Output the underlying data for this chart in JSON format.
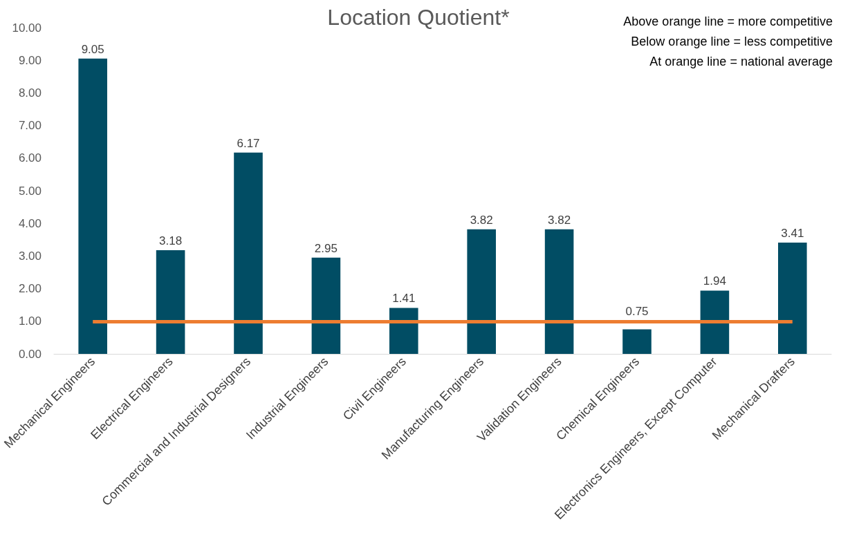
{
  "chart_data": {
    "type": "bar",
    "title": "Location Quotient*",
    "categories": [
      "Mechanical Engineers",
      "Electrical Engineers",
      "Commercial and Industrial Designers",
      "Industrial Engineers",
      "Civil Engineers",
      "Manufacturing Engineers",
      "Validation Engineers",
      "Chemical Engineers",
      "Electronics Engineers, Except Computer",
      "Mechanical Drafters"
    ],
    "values": [
      9.05,
      3.18,
      6.17,
      2.95,
      1.41,
      3.82,
      3.82,
      0.75,
      1.94,
      3.41
    ],
    "color": "#014d64",
    "ylim": [
      0,
      10
    ],
    "yticks": [
      {
        "value": 0,
        "label": "0.00"
      },
      {
        "value": 1,
        "label": "1.00"
      },
      {
        "value": 2,
        "label": "2.00"
      },
      {
        "value": 3,
        "label": "3.00"
      },
      {
        "value": 4,
        "label": "4.00"
      },
      {
        "value": 5,
        "label": "5.00"
      },
      {
        "value": 6,
        "label": "6.00"
      },
      {
        "value": 7,
        "label": "7.00"
      },
      {
        "value": 8,
        "label": "8.00"
      },
      {
        "value": 9,
        "label": "9.00"
      },
      {
        "value": 10,
        "label": "10.00"
      }
    ],
    "grid": false,
    "data_labels": true,
    "ref_lines": [
      {
        "axis": "y",
        "value": 1,
        "color": "#ed7d31"
      }
    ],
    "annotations": [
      "Above orange line = more competitive",
      "Below orange line = less competitive",
      "At orange line = national average"
    ]
  }
}
